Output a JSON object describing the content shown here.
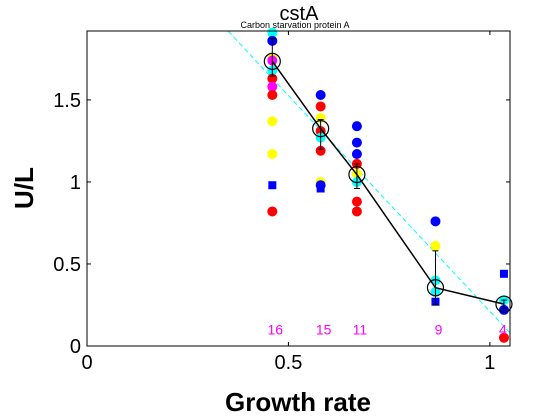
{
  "chart_data": {
    "type": "scatter",
    "title": "cstA",
    "subtitle": "Carbon starvation protein A",
    "xlabel": "Growth rate",
    "ylabel": "U/L",
    "xlim": [
      0,
      1.05
    ],
    "ylim": [
      0,
      1.92
    ],
    "x_ticks": [
      0,
      0.5,
      1
    ],
    "x_tick_labels": [
      "0",
      "0.5",
      "1"
    ],
    "y_ticks": [
      0,
      0.5,
      1,
      1.5
    ],
    "y_tick_labels": [
      "0",
      "0.5",
      "1",
      "1.5"
    ],
    "grid": false,
    "legend": "none",
    "colors": {
      "red": "#ff0000",
      "blue": "#0000ff",
      "yellow": "#ffff00",
      "magenta": "#ff00ff",
      "cyan": "#00ffff",
      "mean": "#000000",
      "fit": "#00ffff",
      "count": "#ff00ff"
    },
    "mean_series": {
      "x": [
        0.46,
        0.58,
        0.67,
        0.865,
        1.035
      ],
      "y": [
        1.735,
        1.325,
        1.045,
        0.355,
        0.255
      ],
      "err_low": [
        1.645,
        1.2,
        0.96,
        0.25,
        0.23
      ],
      "err_high": [
        1.875,
        1.38,
        1.11,
        0.58,
        0.28
      ]
    },
    "fit_line": {
      "x": [
        0.35,
        1.05
      ],
      "y": [
        1.92,
        0.08
      ]
    },
    "points": [
      {
        "x": 0.46,
        "y": 1.91,
        "color": "cyan",
        "marker": "circle"
      },
      {
        "x": 0.46,
        "y": 1.86,
        "color": "blue",
        "marker": "circle"
      },
      {
        "x": 0.46,
        "y": 1.76,
        "color": "yellow",
        "marker": "circle"
      },
      {
        "x": 0.46,
        "y": 1.74,
        "color": "magenta",
        "marker": "circle"
      },
      {
        "x": 0.46,
        "y": 1.68,
        "color": "cyan",
        "marker": "circle"
      },
      {
        "x": 0.46,
        "y": 1.63,
        "color": "red",
        "marker": "circle"
      },
      {
        "x": 0.46,
        "y": 1.58,
        "color": "magenta",
        "marker": "circle"
      },
      {
        "x": 0.46,
        "y": 1.53,
        "color": "red",
        "marker": "circle"
      },
      {
        "x": 0.46,
        "y": 1.37,
        "color": "yellow",
        "marker": "circle"
      },
      {
        "x": 0.46,
        "y": 1.17,
        "color": "yellow",
        "marker": "circle"
      },
      {
        "x": 0.46,
        "y": 0.98,
        "color": "blue",
        "marker": "square"
      },
      {
        "x": 0.46,
        "y": 0.82,
        "color": "red",
        "marker": "circle"
      },
      {
        "x": 0.58,
        "y": 1.53,
        "color": "blue",
        "marker": "circle"
      },
      {
        "x": 0.58,
        "y": 1.46,
        "color": "red",
        "marker": "circle"
      },
      {
        "x": 0.58,
        "y": 1.39,
        "color": "yellow",
        "marker": "circle"
      },
      {
        "x": 0.58,
        "y": 1.31,
        "color": "red",
        "marker": "circle"
      },
      {
        "x": 0.58,
        "y": 1.27,
        "color": "cyan",
        "marker": "circle"
      },
      {
        "x": 0.58,
        "y": 1.19,
        "color": "red",
        "marker": "circle"
      },
      {
        "x": 0.58,
        "y": 1.0,
        "color": "yellow",
        "marker": "circle"
      },
      {
        "x": 0.58,
        "y": 0.98,
        "color": "blue",
        "marker": "circle"
      },
      {
        "x": 0.58,
        "y": 0.96,
        "color": "blue",
        "marker": "square"
      },
      {
        "x": 0.67,
        "y": 1.34,
        "color": "blue",
        "marker": "circle"
      },
      {
        "x": 0.67,
        "y": 1.24,
        "color": "blue",
        "marker": "circle"
      },
      {
        "x": 0.67,
        "y": 1.17,
        "color": "blue",
        "marker": "circle"
      },
      {
        "x": 0.67,
        "y": 1.11,
        "color": "red",
        "marker": "circle"
      },
      {
        "x": 0.67,
        "y": 1.05,
        "color": "yellow",
        "marker": "circle"
      },
      {
        "x": 0.67,
        "y": 1.0,
        "color": "cyan",
        "marker": "circle"
      },
      {
        "x": 0.67,
        "y": 0.88,
        "color": "red",
        "marker": "circle"
      },
      {
        "x": 0.67,
        "y": 0.82,
        "color": "red",
        "marker": "circle"
      },
      {
        "x": 0.865,
        "y": 0.76,
        "color": "blue",
        "marker": "circle"
      },
      {
        "x": 0.865,
        "y": 0.61,
        "color": "yellow",
        "marker": "circle"
      },
      {
        "x": 0.865,
        "y": 0.4,
        "color": "cyan",
        "marker": "circle"
      },
      {
        "x": 0.865,
        "y": 0.33,
        "color": "cyan",
        "marker": "circle"
      },
      {
        "x": 0.865,
        "y": 0.27,
        "color": "blue",
        "marker": "square"
      },
      {
        "x": 1.035,
        "y": 0.44,
        "color": "blue",
        "marker": "square"
      },
      {
        "x": 1.035,
        "y": 0.28,
        "color": "cyan",
        "marker": "circle"
      },
      {
        "x": 1.035,
        "y": 0.22,
        "color": "blue",
        "marker": "circle"
      },
      {
        "x": 1.035,
        "y": 0.05,
        "color": "red",
        "marker": "circle"
      }
    ],
    "counts": [
      {
        "x": 0.46,
        "label": "16"
      },
      {
        "x": 0.58,
        "label": "15"
      },
      {
        "x": 0.67,
        "label": "11"
      },
      {
        "x": 0.865,
        "label": "9"
      },
      {
        "x": 1.035,
        "label": "4"
      }
    ],
    "count_label_y": 0.1
  }
}
